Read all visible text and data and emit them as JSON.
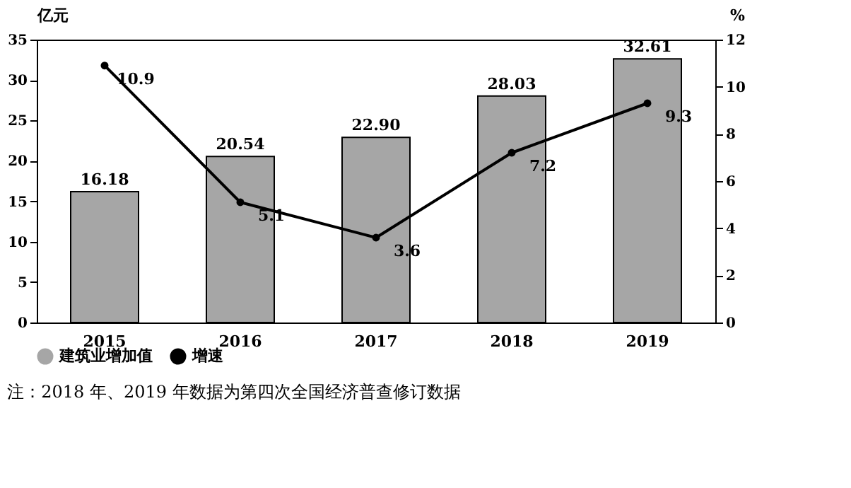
{
  "chart_data": {
    "type": "bar",
    "categories": [
      "2015",
      "2016",
      "2017",
      "2018",
      "2019"
    ],
    "series": [
      {
        "name": "建筑业增加值",
        "color": "#a6a6a6",
        "values": [
          16.18,
          20.54,
          22.9,
          28.03,
          32.61
        ],
        "value_labels": [
          "16.18",
          "20.54",
          "22.90",
          "28.03",
          "32.61"
        ]
      },
      {
        "name": "增速",
        "type": "line",
        "axis": "y2",
        "color": "#000000",
        "marker": "circle",
        "values": [
          10.9,
          5.1,
          3.6,
          7.2,
          9.3
        ],
        "value_labels": [
          "10.9",
          "5.1",
          "3.6",
          "7.2",
          "9.3"
        ]
      }
    ],
    "ylabel": "亿元",
    "y2label": "%",
    "ylim": [
      0,
      35
    ],
    "yticks": [
      0,
      5,
      10,
      15,
      20,
      25,
      30,
      35
    ],
    "y2lim": [
      0,
      12
    ],
    "y2ticks": [
      0,
      2,
      4,
      6,
      8,
      10,
      12
    ],
    "legend": "bottom",
    "grid": false,
    "annotations": [
      "注：2018 年、2019 年数据为第四次全国经济普查修订数据"
    ]
  }
}
